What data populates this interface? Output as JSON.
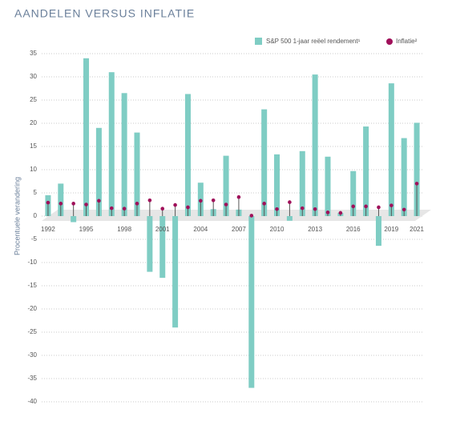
{
  "chart_data": {
    "type": "bar-lollipop",
    "title": "AANDELEN VERSUS INFLATIE",
    "y_label": "Procentuele verandering",
    "categories": [
      "1992",
      null,
      null,
      "1995",
      null,
      null,
      "1998",
      null,
      null,
      "2001",
      null,
      null,
      "2004",
      null,
      null,
      "2007",
      null,
      null,
      "2010",
      null,
      null,
      "2013",
      null,
      null,
      "2016",
      null,
      null,
      "2019",
      null,
      "2021"
    ],
    "series": [
      {
        "name": "S&P 500 1-jaar reëel rendement¹",
        "color": "#7fcdc4",
        "values": [
          4.5,
          7,
          -1.3,
          34,
          19,
          31,
          26.5,
          18,
          -12,
          -13.3,
          -24,
          26.3,
          7.2,
          1.5,
          13,
          1.4,
          -37,
          23,
          13.3,
          -1,
          14,
          30.5,
          12.8,
          0.7,
          9.7,
          19.3,
          -6.4,
          28.6,
          16.8,
          20.1
        ]
      },
      {
        "name": "Inflatie²",
        "color": "#a0105a",
        "values": [
          2.9,
          2.7,
          2.7,
          2.5,
          3.3,
          1.7,
          1.6,
          2.7,
          3.4,
          1.6,
          2.4,
          1.9,
          3.3,
          3.4,
          2.5,
          4.1,
          0.1,
          2.7,
          1.5,
          3.0,
          1.7,
          1.5,
          0.8,
          0.7,
          2.1,
          2.1,
          1.9,
          2.3,
          1.4,
          7.0
        ]
      }
    ],
    "ylim": [
      -40,
      35
    ],
    "yticks": [
      -40,
      -35,
      -30,
      -25,
      -20,
      -15,
      -10,
      -5,
      0,
      5,
      10,
      15,
      20,
      25,
      30,
      35
    ],
    "grid": true
  }
}
